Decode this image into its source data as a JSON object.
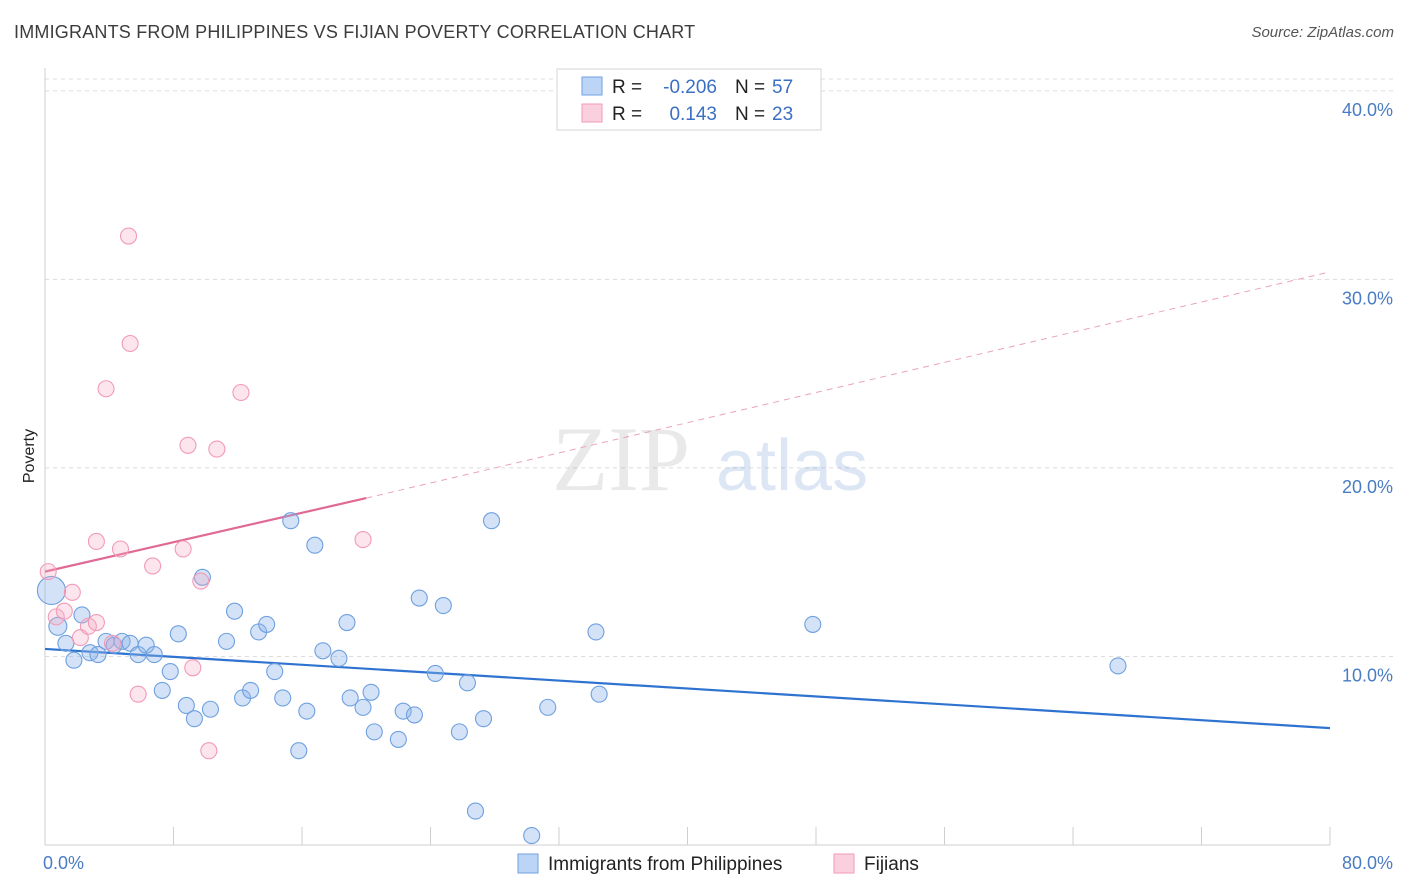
{
  "title": "IMMIGRANTS FROM PHILIPPINES VS FIJIAN POVERTY CORRELATION CHART",
  "source": "Source: ZipAtlas.com",
  "watermark": {
    "zip": "ZIP",
    "atlas": "atlas"
  },
  "legend": {
    "r_label": "R =",
    "n_label": "N =",
    "rows": [
      {
        "r": "-0.206",
        "n": "57",
        "color": "#6fa0e0"
      },
      {
        "r": "0.143",
        "n": "23",
        "color": "#f29ab8"
      }
    ]
  },
  "chart_data": {
    "type": "scatter",
    "ylabel": "Poverty",
    "x_tick_labels": [
      "0.0%",
      "80.0%"
    ],
    "y_tick_labels": [
      "10.0%",
      "20.0%",
      "30.0%",
      "40.0%"
    ],
    "xlim": [
      0,
      80
    ],
    "ylim": [
      0,
      41
    ],
    "grid": true,
    "series": [
      {
        "name": "Immigrants from Philippines",
        "color": "#6fa0e0",
        "trend": {
          "x": [
            0,
            80
          ],
          "y": [
            10.4,
            6.2
          ],
          "dashed": false
        },
        "points": [
          [
            0.4,
            13.5,
            14
          ],
          [
            0.8,
            11.6,
            9
          ],
          [
            1.3,
            10.7,
            8
          ],
          [
            1.8,
            9.8,
            8
          ],
          [
            2.3,
            12.2,
            8
          ],
          [
            2.8,
            10.2,
            8
          ],
          [
            3.3,
            10.1,
            8
          ],
          [
            3.8,
            10.8,
            8
          ],
          [
            4.3,
            10.6,
            8
          ],
          [
            4.8,
            10.8,
            8
          ],
          [
            5.3,
            10.7,
            8
          ],
          [
            5.8,
            10.1,
            8
          ],
          [
            6.3,
            10.6,
            8
          ],
          [
            6.8,
            10.1,
            8
          ],
          [
            7.3,
            8.2,
            8
          ],
          [
            7.8,
            9.2,
            8
          ],
          [
            8.3,
            11.2,
            8
          ],
          [
            8.8,
            7.4,
            8
          ],
          [
            9.3,
            6.7,
            8
          ],
          [
            9.8,
            14.2,
            8
          ],
          [
            10.3,
            7.2,
            8
          ],
          [
            11.3,
            10.8,
            8
          ],
          [
            11.8,
            12.4,
            8
          ],
          [
            12.3,
            7.8,
            8
          ],
          [
            12.8,
            8.2,
            8
          ],
          [
            13.3,
            11.3,
            8
          ],
          [
            13.8,
            11.7,
            8
          ],
          [
            14.3,
            9.2,
            8
          ],
          [
            14.8,
            7.8,
            8
          ],
          [
            15.3,
            17.2,
            8
          ],
          [
            15.8,
            5.0,
            8
          ],
          [
            16.3,
            7.1,
            8
          ],
          [
            16.8,
            15.9,
            8
          ],
          [
            17.3,
            10.3,
            8
          ],
          [
            18.3,
            9.9,
            8
          ],
          [
            18.8,
            11.8,
            8
          ],
          [
            19.0,
            7.8,
            8
          ],
          [
            19.8,
            7.3,
            8
          ],
          [
            20.3,
            8.1,
            8
          ],
          [
            20.5,
            6.0,
            8
          ],
          [
            22.0,
            5.6,
            8
          ],
          [
            22.3,
            7.1,
            8
          ],
          [
            23.0,
            6.9,
            8
          ],
          [
            23.3,
            13.1,
            8
          ],
          [
            24.3,
            9.1,
            8
          ],
          [
            24.8,
            12.7,
            8
          ],
          [
            25.8,
            6.0,
            8
          ],
          [
            26.3,
            8.6,
            8
          ],
          [
            26.8,
            1.8,
            8
          ],
          [
            27.3,
            6.7,
            8
          ],
          [
            27.8,
            17.2,
            8
          ],
          [
            30.3,
            0.5,
            8
          ],
          [
            31.3,
            7.3,
            8
          ],
          [
            34.3,
            11.3,
            8
          ],
          [
            34.5,
            8.0,
            8
          ],
          [
            47.8,
            11.7,
            8
          ],
          [
            66.8,
            9.5,
            8
          ]
        ]
      },
      {
        "name": "Fijians",
        "color": "#f29ab8",
        "trend": {
          "x": [
            0,
            20
          ],
          "y": [
            14.5,
            18.4
          ],
          "dashed": false,
          "extension": {
            "x": [
              20,
              80
            ],
            "y": [
              18.4,
              30.4
            ],
            "dashed": true
          }
        },
        "points": [
          [
            0.2,
            14.5,
            8
          ],
          [
            0.7,
            12.1,
            8
          ],
          [
            1.2,
            12.4,
            8
          ],
          [
            1.7,
            13.4,
            8
          ],
          [
            2.2,
            11.0,
            8
          ],
          [
            2.7,
            11.6,
            8
          ],
          [
            3.2,
            11.8,
            8
          ],
          [
            3.2,
            16.1,
            8
          ],
          [
            3.8,
            24.2,
            8
          ],
          [
            4.2,
            10.7,
            8
          ],
          [
            4.7,
            15.7,
            8
          ],
          [
            5.2,
            32.3,
            8
          ],
          [
            5.3,
            26.6,
            8
          ],
          [
            5.8,
            8.0,
            8
          ],
          [
            6.7,
            14.8,
            8
          ],
          [
            8.6,
            15.7,
            8
          ],
          [
            8.9,
            21.2,
            8
          ],
          [
            9.2,
            9.4,
            8
          ],
          [
            9.7,
            14.0,
            8
          ],
          [
            10.2,
            5.0,
            8
          ],
          [
            10.7,
            21.0,
            8
          ],
          [
            12.2,
            24.0,
            8
          ],
          [
            19.8,
            16.2,
            8
          ]
        ]
      }
    ]
  }
}
